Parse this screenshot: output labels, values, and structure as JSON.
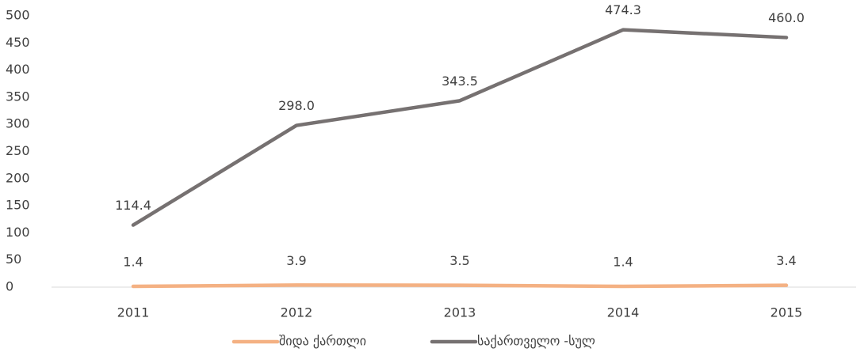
{
  "chart_data": {
    "type": "line",
    "categories": [
      "2011",
      "2012",
      "2013",
      "2014",
      "2015"
    ],
    "series": [
      {
        "name": "შიდა ქართლი",
        "color": "#f4b183",
        "values": [
          1.4,
          3.9,
          3.5,
          1.4,
          3.4
        ],
        "value_labels": [
          "1.4",
          "3.9",
          "3.5",
          "1.4",
          "3.4"
        ]
      },
      {
        "name": "საქართველო -სულ",
        "color": "#767171",
        "values": [
          114.4,
          298.0,
          343.5,
          474.3,
          460.0
        ],
        "value_labels": [
          "114.4",
          "298.0",
          "343.5",
          "474.3",
          "460.0"
        ]
      }
    ],
    "ylim": [
      0,
      500
    ],
    "yticks": [
      0,
      50,
      100,
      150,
      200,
      250,
      300,
      350,
      400,
      450,
      500
    ],
    "grid": false,
    "legend": "bottom"
  }
}
